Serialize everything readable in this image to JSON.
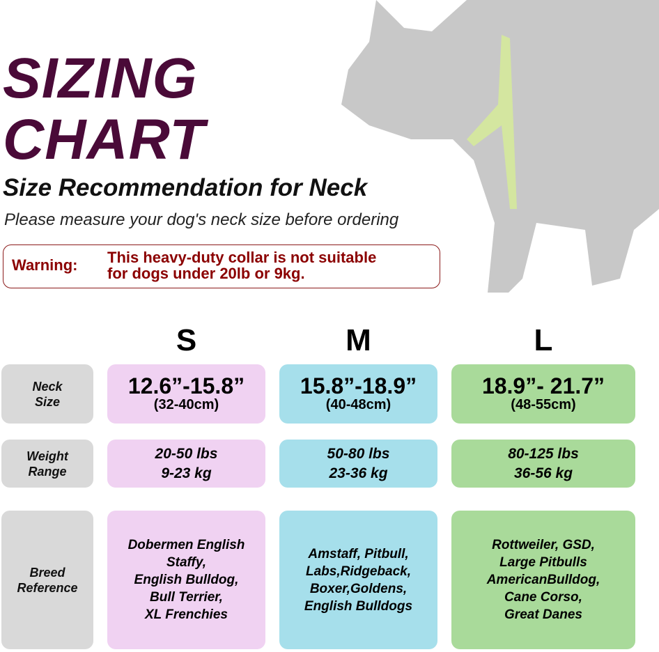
{
  "title": {
    "line1": "SIZING",
    "line2": "CHART"
  },
  "subtitle": "Size Recommendation for Neck",
  "note": "Please measure your dog's neck size before ordering",
  "warning": {
    "label": "Warning:",
    "line1": "This heavy-duty collar is not suitable",
    "line2": "for dogs under 20lb or 9kg."
  },
  "colors": {
    "title": "#4a0a38",
    "warning": "#8b0000",
    "S": "#f0d2f2",
    "M": "#a6dfeb",
    "L": "#a9da9a",
    "label": "#d9d9d9"
  },
  "sizes": [
    "S",
    "M",
    "L"
  ],
  "rows": {
    "neck": {
      "label1": "Neck",
      "label2": "Size",
      "values": [
        {
          "in": "12.6”-15.8”",
          "cm": "(32-40cm)"
        },
        {
          "in": "15.8”-18.9”",
          "cm": "(40-48cm)"
        },
        {
          "in": "18.9”- 21.7”",
          "cm": "(48-55cm)"
        }
      ]
    },
    "weight": {
      "label1": "Weight",
      "label2": "Range",
      "values": [
        {
          "lbs": "20-50 lbs",
          "kg": "9-23 kg"
        },
        {
          "lbs": "50-80 lbs",
          "kg": "23-36 kg"
        },
        {
          "lbs": "80-125 lbs",
          "kg": "36-56 kg"
        }
      ]
    },
    "breed": {
      "label1": "Breed",
      "label2": "Reference",
      "values": [
        [
          "Dobermen English",
          "Staffy,",
          "English Bulldog,",
          "Bull Terrier,",
          "XL Frenchies"
        ],
        [
          "Amstaff, Pitbull,",
          "Labs,Ridgeback,",
          "Boxer,Goldens,",
          "English Bulldogs"
        ],
        [
          "Rottweiler, GSD,",
          "Large Pitbulls",
          "AmericanBulldog,",
          "Cane Corso,",
          "Great Danes"
        ]
      ]
    }
  }
}
